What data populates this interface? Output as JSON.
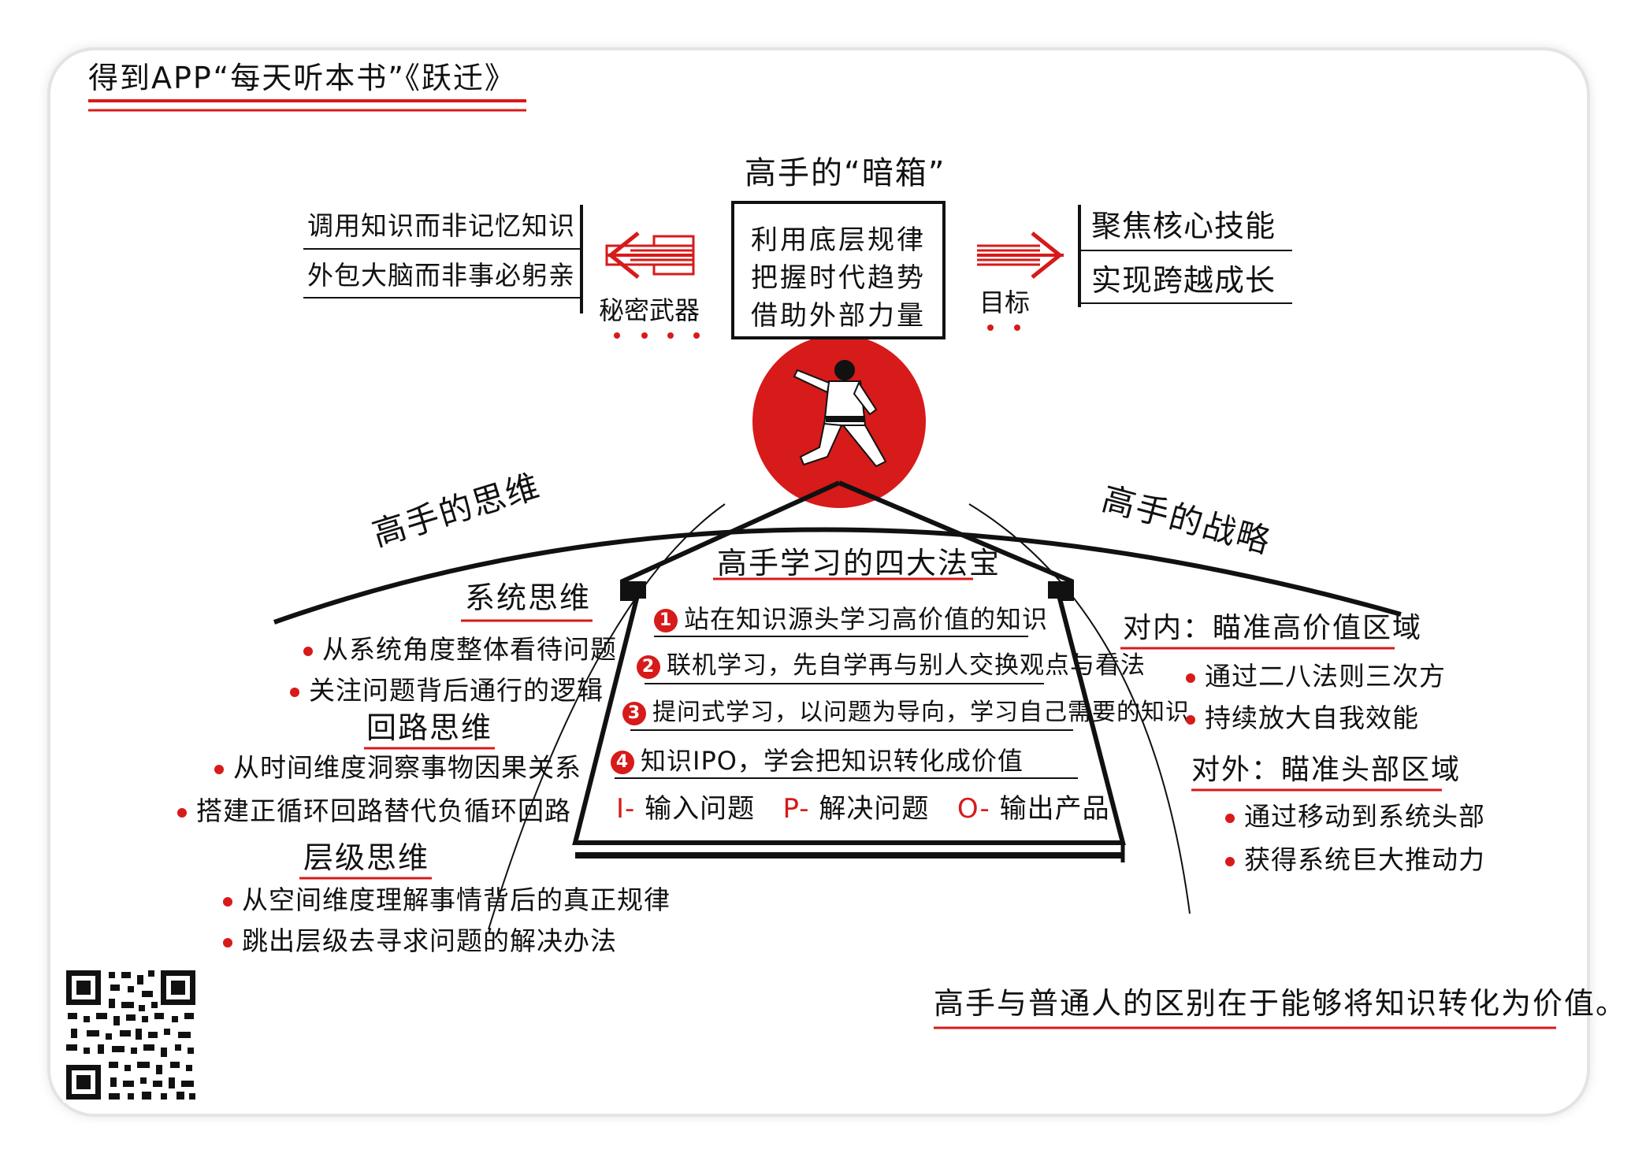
{
  "header": {
    "title": "得到APP“每天听本书”《跃迁》"
  },
  "center": {
    "title": "高手的“暗箱”",
    "lines": [
      "利用底层规律",
      "把握时代趋势",
      "借助外部力量"
    ]
  },
  "left_branch": {
    "label": "秘密武器",
    "items": [
      "调用知识而非记忆知识",
      "外包大脑而非事必躬亲"
    ]
  },
  "right_branch": {
    "label": "目标",
    "items": [
      "聚焦核心技能",
      "实现跨越成长"
    ]
  },
  "thinking": {
    "title": "高手的思维",
    "sections": [
      {
        "heading": "系统思维",
        "items": [
          "从系统角度整体看待问题",
          "关注问题背后通行的逻辑"
        ]
      },
      {
        "heading": "回路思维",
        "items": [
          "从时间维度洞察事物因果关系",
          "搭建正循环回路替代负循环回路"
        ]
      },
      {
        "heading": "层级思维",
        "items": [
          "从空间维度理解事情背后的真正规律",
          "跳出层级去寻求问题的解决办法"
        ]
      }
    ]
  },
  "treasures": {
    "title": "高手学习的四大法宝",
    "items": [
      {
        "num": "1",
        "text": "站在知识源头学习高价值的知识"
      },
      {
        "num": "2",
        "text": "联机学习，先自学再与别人交换观点与看法"
      },
      {
        "num": "3",
        "text": "提问式学习，以问题为导向，学习自己需要的知识"
      },
      {
        "num": "4",
        "text": "知识IPO，学会把知识转化成价值"
      }
    ],
    "ipo": [
      {
        "letter": "I-",
        "text": "输入问题"
      },
      {
        "letter": "P-",
        "text": "解决问题"
      },
      {
        "letter": "O-",
        "text": "输出产品"
      }
    ]
  },
  "strategy": {
    "title": "高手的战略",
    "sections": [
      {
        "heading": "对内：瞄准高价值区域",
        "items": [
          "通过二八法则三次方",
          "持续放大自我效能"
        ]
      },
      {
        "heading": "对外：瞄准头部区域",
        "items": [
          "通过移动到系统头部",
          "获得系统巨大推动力"
        ]
      }
    ]
  },
  "conclusion": "高手与普通人的区别在于能够将知识转化为价值。",
  "colors": {
    "accent": "#d71a1a",
    "ink": "#111111"
  },
  "icons": {
    "figure": "karate-figure-icon",
    "qr": "qr-code-icon"
  }
}
